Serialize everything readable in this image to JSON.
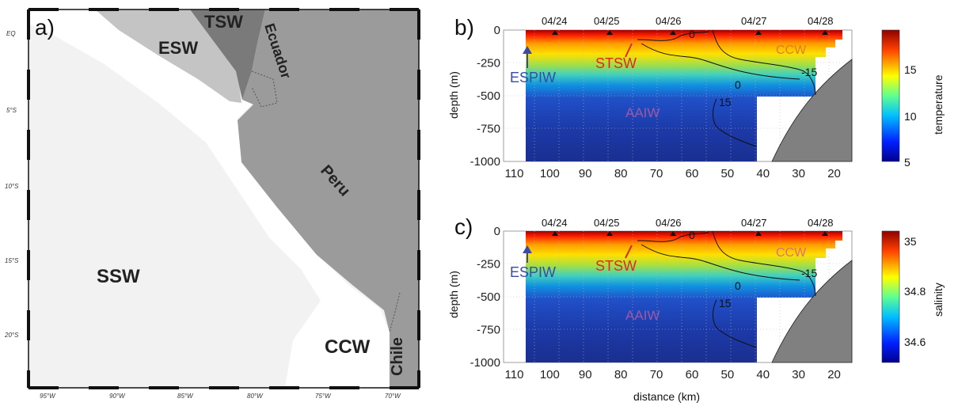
{
  "panel_a": {
    "label": "a)",
    "water_masses": [
      "TSW",
      "ESW",
      "SSW",
      "CCW"
    ],
    "countries": [
      "Ecuador",
      "Peru",
      "Chile"
    ],
    "lat_labels": [
      "EQ",
      "5°S",
      "10°S",
      "15°S",
      "20°S"
    ],
    "lon_labels": [
      "95°W",
      "90°W",
      "85°W",
      "80°W",
      "75°W",
      "70°W"
    ],
    "colors": {
      "ssw": "#f2f2f2",
      "esw": "#c4c4c4",
      "tsw": "#7a7a7a",
      "land": "#9b9b9b",
      "ccw": "#ffffff"
    }
  },
  "panel_b": {
    "label": "b)",
    "ylabel": "depth (m)",
    "colorbar_label": "temperature",
    "colorbar_ticks": [
      "15",
      "10",
      "5"
    ],
    "dates": [
      "04/24",
      "04/25",
      "04/26",
      "04/27",
      "04/28"
    ],
    "annotations": [
      "ESPIW",
      "STSW",
      "CCW",
      "AAIW"
    ],
    "contours": [
      "0",
      "-15",
      "0",
      "15"
    ]
  },
  "panel_c": {
    "label": "c)",
    "ylabel": "depth (m)",
    "xlabel": "distance (km)",
    "colorbar_label": "salinity",
    "colorbar_ticks": [
      "35",
      "34.8",
      "34.6"
    ],
    "dates": [
      "04/24",
      "04/25",
      "04/26",
      "04/27",
      "04/28"
    ],
    "annotations": [
      "ESPIW",
      "STSW",
      "CCW",
      "AAIW"
    ],
    "contours": [
      "0",
      "-15",
      "0",
      "15"
    ]
  },
  "axes": {
    "x_ticks": [
      "110",
      "100",
      "90",
      "80",
      "70",
      "60",
      "50",
      "40",
      "30",
      "20"
    ],
    "y_ticks": [
      "0",
      "-250",
      "-500",
      "-750",
      "-1000"
    ],
    "x_range_km": [
      113,
      15
    ],
    "y_range_m": [
      -1000,
      0
    ]
  }
}
